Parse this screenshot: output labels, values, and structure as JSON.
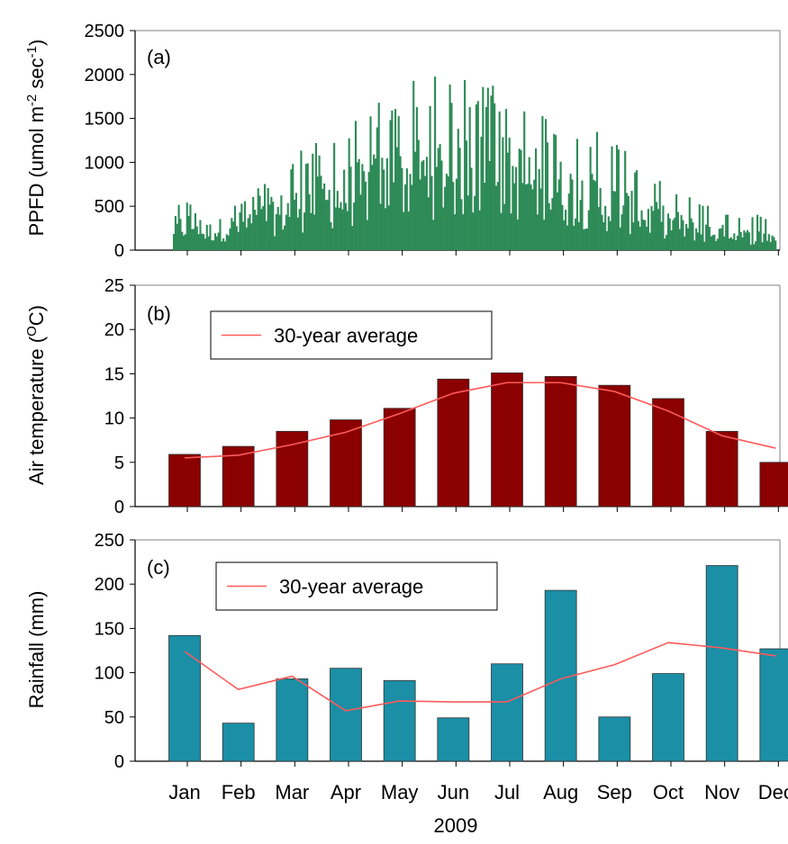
{
  "chart_data": [
    {
      "panel": "(a)",
      "type": "bar",
      "ylabel": "PPFD (umol m-2 sec-1)",
      "ylim": [
        0,
        2500
      ],
      "yticks": [
        "0",
        "500",
        "1000",
        "1500",
        "2000",
        "2500"
      ],
      "months": [
        "Jan",
        "Feb",
        "Mar",
        "Apr",
        "May",
        "Jun",
        "Jul",
        "Aug",
        "Sep",
        "Oct",
        "Nov",
        "Dec"
      ],
      "monthly_peak": [
        390,
        620,
        1150,
        1450,
        1900,
        2020,
        1950,
        1500,
        1400,
        900,
        560,
        420
      ],
      "monthly_typical": [
        180,
        300,
        480,
        620,
        800,
        880,
        850,
        700,
        520,
        360,
        210,
        150
      ],
      "colors": {
        "bars": "#2e8b57"
      }
    },
    {
      "panel": "(b)",
      "type": "bar",
      "ylabel": "Air temperature (OC)",
      "ylim": [
        0,
        25
      ],
      "yticks": [
        "0",
        "5",
        "10",
        "15",
        "20",
        "25"
      ],
      "categories": [
        "Jan",
        "Feb",
        "Mar",
        "Apr",
        "May",
        "Jun",
        "Jul",
        "Aug",
        "Sep",
        "Oct",
        "Nov",
        "Dec"
      ],
      "series": [
        {
          "type": "bar",
          "values": [
            5.9,
            6.8,
            8.5,
            9.8,
            11.1,
            14.4,
            15.1,
            14.7,
            13.7,
            12.2,
            8.5,
            5.0
          ]
        },
        {
          "type": "line",
          "name": "30-year average",
          "values": [
            5.5,
            5.8,
            7.0,
            8.4,
            10.5,
            12.8,
            14.0,
            14.0,
            13.0,
            10.8,
            8.0,
            6.6
          ]
        }
      ],
      "legend": {
        "text": "30-year average",
        "position": "top-left"
      },
      "colors": {
        "bars": "#8b0000",
        "line": "#ff5a5a"
      }
    },
    {
      "panel": "(c)",
      "type": "bar",
      "ylabel": "Rainfall (mm)",
      "ylim": [
        0,
        250
      ],
      "yticks": [
        "0",
        "50",
        "100",
        "150",
        "200",
        "250"
      ],
      "categories": [
        "Jan",
        "Feb",
        "Mar",
        "Apr",
        "May",
        "Jun",
        "Jul",
        "Aug",
        "Sep",
        "Oct",
        "Nov",
        "Dec"
      ],
      "series": [
        {
          "type": "bar",
          "values": [
            142,
            43,
            93,
            105,
            91,
            49,
            110,
            193,
            50,
            99,
            221,
            127
          ]
        },
        {
          "type": "line",
          "name": "30-year average",
          "values": [
            124,
            81,
            96,
            57,
            68,
            67,
            67,
            93,
            109,
            134,
            128,
            119
          ]
        }
      ],
      "legend": {
        "text": "30-year average",
        "position": "top-left"
      },
      "xlabel": "2009",
      "colors": {
        "bars": "#1a8fa6",
        "line": "#ff5a5a"
      }
    }
  ]
}
